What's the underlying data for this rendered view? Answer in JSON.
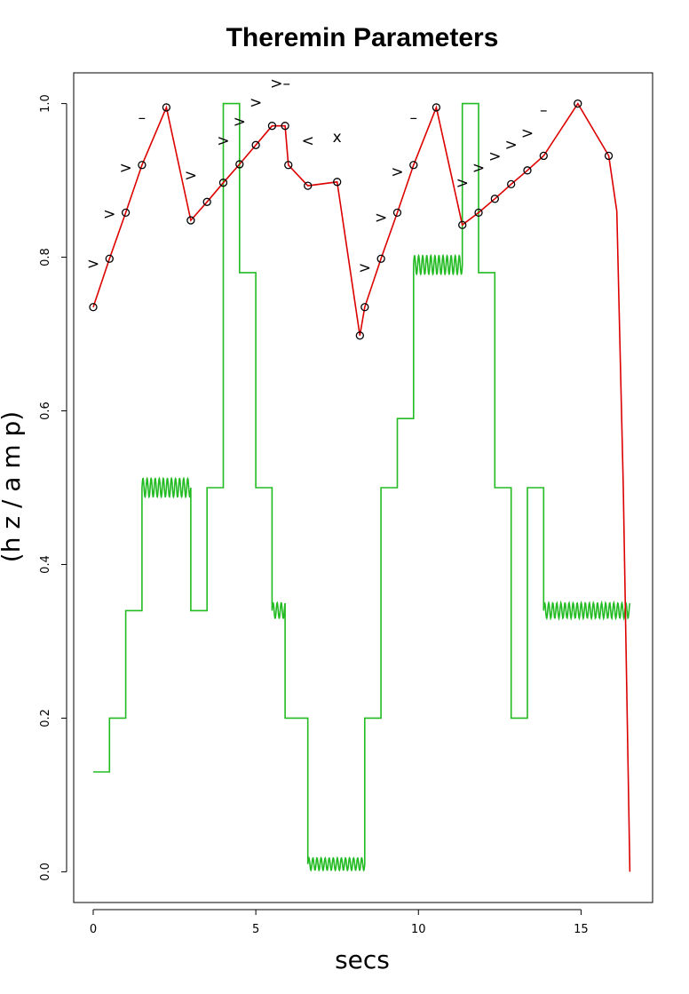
{
  "chart_data": {
    "type": "line",
    "title": "Theremin Parameters",
    "xlabel": "secs",
    "ylabel": "(h z / a m p)",
    "xlim": [
      -0.6,
      17.2
    ],
    "ylim": [
      -0.04,
      1.04
    ],
    "x_ticks": [
      0,
      5,
      10,
      15
    ],
    "y_ticks": [
      0.0,
      0.2,
      0.4,
      0.6,
      0.8,
      1.0
    ],
    "x_tick_labels": [
      "0",
      "5",
      "10",
      "15"
    ],
    "y_tick_labels": [
      "0.0",
      "0.2",
      "0.4",
      "0.6",
      "0.8",
      "1.0"
    ],
    "grid": false,
    "series": [
      {
        "color": "#dd0000",
        "marker": "open-circle",
        "x": [
          0.0,
          0.5,
          1.0,
          1.5,
          2.25,
          3.0,
          3.5,
          4.0,
          4.5,
          5.0,
          5.5,
          5.9,
          6.0,
          6.6,
          7.5,
          8.2,
          8.35,
          8.85,
          9.35,
          9.85,
          10.55,
          11.35,
          11.85,
          12.35,
          12.85,
          13.35,
          13.85,
          14.9,
          15.85
        ],
        "y": [
          0.735,
          0.798,
          0.858,
          0.92,
          0.995,
          0.848,
          0.872,
          0.897,
          0.921,
          0.946,
          0.971,
          0.971,
          0.92,
          0.893,
          0.898,
          0.698,
          0.735,
          0.798,
          0.858,
          0.92,
          0.995,
          0.842,
          0.858,
          0.876,
          0.895,
          0.913,
          0.932,
          1.0,
          0.932
        ],
        "tail_x": [
          15.85,
          16.1,
          16.3,
          16.5
        ],
        "tail_y": [
          0.932,
          0.86,
          0.5,
          0.0
        ]
      },
      {
        "color": "#22bb22",
        "marker": "none",
        "segments": [
          {
            "x0": 0.0,
            "x1": 0.5,
            "y": 0.13
          },
          {
            "x0": 0.5,
            "x1": 1.0,
            "y": 0.2
          },
          {
            "x0": 1.0,
            "x1": 1.5,
            "y": 0.34
          },
          {
            "x0": 1.5,
            "x1": 3.0,
            "y": 0.5,
            "vibrato": 0.012
          },
          {
            "x0": 3.0,
            "x1": 3.5,
            "y": 0.34
          },
          {
            "x0": 3.5,
            "x1": 4.0,
            "y": 0.5
          },
          {
            "x0": 4.0,
            "x1": 4.5,
            "y": 1.0
          },
          {
            "x0": 4.5,
            "x1": 5.0,
            "y": 0.78
          },
          {
            "x0": 5.0,
            "x1": 5.5,
            "y": 0.5
          },
          {
            "x0": 5.5,
            "x1": 5.9,
            "y": 0.34,
            "vibrato": 0.01
          },
          {
            "x0": 5.9,
            "x1": 6.6,
            "y": 0.2
          },
          {
            "x0": 6.6,
            "x1": 8.35,
            "y": 0.01,
            "vibrato": 0.008
          },
          {
            "x0": 8.35,
            "x1": 8.85,
            "y": 0.2
          },
          {
            "x0": 8.85,
            "x1": 9.35,
            "y": 0.5
          },
          {
            "x0": 9.35,
            "x1": 9.85,
            "y": 0.59
          },
          {
            "x0": 9.85,
            "x1": 11.35,
            "y": 0.79,
            "vibrato": 0.012
          },
          {
            "x0": 11.35,
            "x1": 11.85,
            "y": 1.0
          },
          {
            "x0": 11.85,
            "x1": 12.35,
            "y": 0.78
          },
          {
            "x0": 12.35,
            "x1": 12.85,
            "y": 0.5
          },
          {
            "x0": 12.85,
            "x1": 13.35,
            "y": 0.2
          },
          {
            "x0": 13.35,
            "x1": 13.85,
            "y": 0.5
          },
          {
            "x0": 13.85,
            "x1": 16.5,
            "y": 0.34,
            "vibrato": 0.01
          }
        ]
      }
    ],
    "annotations": [
      {
        "text": ">",
        "x": 0.0,
        "y": 0.785
      },
      {
        "text": ">",
        "x": 0.5,
        "y": 0.85
      },
      {
        "text": ">",
        "x": 1.0,
        "y": 0.91
      },
      {
        "text": "–",
        "x": 1.5,
        "y": 0.975
      },
      {
        "text": ">",
        "x": 3.0,
        "y": 0.9
      },
      {
        "text": ">",
        "x": 4.0,
        "y": 0.945
      },
      {
        "text": ">",
        "x": 4.5,
        "y": 0.97
      },
      {
        "text": ">",
        "x": 5.0,
        "y": 0.995
      },
      {
        "text": ">–",
        "x": 5.75,
        "y": 1.02
      },
      {
        "text": "<",
        "x": 6.6,
        "y": 0.945
      },
      {
        "text": "x",
        "x": 7.5,
        "y": 0.95
      },
      {
        "text": ">",
        "x": 8.35,
        "y": 0.78
      },
      {
        "text": ">",
        "x": 8.85,
        "y": 0.845
      },
      {
        "text": ">",
        "x": 9.35,
        "y": 0.905
      },
      {
        "text": "–",
        "x": 9.85,
        "y": 0.975
      },
      {
        "text": ">",
        "x": 11.35,
        "y": 0.89
      },
      {
        "text": ">",
        "x": 11.85,
        "y": 0.91
      },
      {
        "text": ">",
        "x": 12.35,
        "y": 0.925
      },
      {
        "text": ">",
        "x": 12.85,
        "y": 0.94
      },
      {
        "text": ">",
        "x": 13.35,
        "y": 0.955
      },
      {
        "text": "–",
        "x": 13.85,
        "y": 0.985
      }
    ]
  }
}
